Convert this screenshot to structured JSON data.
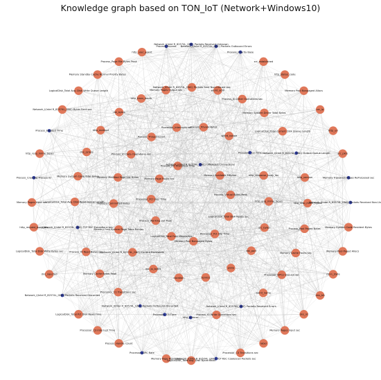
{
  "title": "Knowledge graph based on TON_IoT (Network+Windows10)",
  "colors": {
    "node_major": "#e0785a",
    "node_minor": "#2f3d9e",
    "edge": "#b9b9b9"
  },
  "nodes": [
    {
      "label": "Network_I(Intel R_82574L_GNC) Packets Received Unknown",
      "kind": "minor"
    },
    {
      "label": "Network_I(Intel R_82574L_GNC) Packets Outbound Errors",
      "kind": "minor"
    },
    {
      "label": "Process_Priority Base",
      "kind": "minor"
    },
    {
      "label": "src_established",
      "kind": "major"
    },
    {
      "label": "http_status_code",
      "kind": "major"
    },
    {
      "label": "Memory Pool Nonpaged Allocs",
      "kind": "major"
    },
    {
      "label": "src_ip",
      "kind": "major"
    },
    {
      "label": "http_uri",
      "kind": "major"
    },
    {
      "label": "src_pkts",
      "kind": "major"
    },
    {
      "label": "Memory Transition Pages RePurposed sec",
      "kind": "minor"
    },
    {
      "label": "Network_I(Intel R_82574L_GNC) Packets Received Non-Unicast sec",
      "kind": "minor"
    },
    {
      "label": "Memory System Code Resident Bytes",
      "kind": "major"
    },
    {
      "label": "Memory Pool Paged Allocs",
      "kind": "major"
    },
    {
      "label": "conn_state",
      "kind": "major"
    },
    {
      "label": "dns_AA",
      "kind": "major"
    },
    {
      "label": "dns_rd",
      "kind": "major"
    },
    {
      "label": "Memory Pages Input sec",
      "kind": "major"
    },
    {
      "label": "label",
      "kind": "major"
    },
    {
      "label": "Processor_C3 Transitions sec",
      "kind": "major"
    },
    {
      "label": "Network_I(Intel R_82574L_GNC) TCP RSC Coalesced Packets sec",
      "kind": "minor"
    },
    {
      "label": "LogicalDisk_Total Avg. Disk Bytes Read",
      "kind": "major"
    },
    {
      "label": "Memory Page Reads sec",
      "kind": "major"
    },
    {
      "label": "Processor_DPC Rate",
      "kind": "minor"
    },
    {
      "label": "Process_Handle Count",
      "kind": "major"
    },
    {
      "label": "Processor_C3 Interrupt Time",
      "kind": "major"
    },
    {
      "label": "LogicalDisk_Total Pct Disk Read Time",
      "kind": "major"
    },
    {
      "label": "Network_I(Intel R_82574L_GNC) Packets Received Discarded",
      "kind": "minor"
    },
    {
      "label": "dns_rejected",
      "kind": "major"
    },
    {
      "label": "LogicalDisk_Total Disk Write Bytes sec",
      "kind": "major"
    },
    {
      "label": "http_request_body_len",
      "kind": "major"
    },
    {
      "label": "Memory Pages Input sec",
      "kind": "major"
    },
    {
      "label": "Process_Creating Process ID",
      "kind": "minor"
    },
    {
      "label": "http_resp_mime_types",
      "kind": "major"
    },
    {
      "label": "Process_Elapsed Time",
      "kind": "minor"
    },
    {
      "label": "Network_I(Intel R_82574L_GNC) Bytes Sent sec",
      "kind": "major"
    },
    {
      "label": "LogicalDisk_Total Avg. Disk Write Queue Length",
      "kind": "major"
    },
    {
      "label": "Memory Standby Cache Normal Priority Bytes",
      "kind": "major"
    },
    {
      "label": "Process_Page File Bytes Peak",
      "kind": "major"
    },
    {
      "label": "http_user_agent",
      "kind": "major"
    },
    {
      "label": "Process_Process",
      "kind": "minor"
    },
    {
      "label": "weird_addl",
      "kind": "major"
    },
    {
      "label": "Process_IO Other Operations sec",
      "kind": "major"
    },
    {
      "label": "Memory System Driver Total Bytes",
      "kind": "major"
    },
    {
      "label": "LogicalDisk_Total Current Disk Queue Length",
      "kind": "major"
    },
    {
      "label": "Network_I(Intel R_82574L_GNC) Output Queue Length",
      "kind": "minor"
    },
    {
      "label": "http_version",
      "kind": "major"
    },
    {
      "label": "http_resp_mime_types",
      "kind": "major"
    },
    {
      "label": "Process_Pool Paged Bytes",
      "kind": "major"
    },
    {
      "label": "Memory Cache Faults sec",
      "kind": "major"
    },
    {
      "label": "Processor_DPCs Queued sec",
      "kind": "major"
    },
    {
      "label": "weird_name",
      "kind": "major"
    },
    {
      "label": "Network_I(Intel R_82574L_GNC) Packets Received Errors",
      "kind": "minor"
    },
    {
      "label": "Process_IO Write Operations sec",
      "kind": "major"
    },
    {
      "label": "http_referrer",
      "kind": "minor"
    },
    {
      "label": "Processor_C3 Time",
      "kind": "minor"
    },
    {
      "label": "Network_I(Intel R_82574L_GNC) Packets Outbound Discarded",
      "kind": "minor"
    },
    {
      "label": "Processor_C1 Transitions sec",
      "kind": "major"
    },
    {
      "label": "Memory Cache Bytes Peak",
      "kind": "major"
    },
    {
      "label": "Process_IO Read Bytes sec",
      "kind": "major"
    },
    {
      "label": "Network_I(Intel R_82574L_GNC) TCP RSC Exceptions sec",
      "kind": "minor"
    },
    {
      "label": "LogicalDisk_Total Avg. Disk Read Queue Length",
      "kind": "major"
    },
    {
      "label": "Memory System Code Total Bytes",
      "kind": "major"
    },
    {
      "label": "dns_qclass",
      "kind": "major"
    },
    {
      "label": "http_method",
      "kind": "major"
    },
    {
      "label": "dst_bytes",
      "kind": "major"
    },
    {
      "label": "http_trans_depth",
      "kind": "major"
    },
    {
      "label": "Memory Pages Output sec",
      "kind": "major"
    },
    {
      "label": "Network_I(Intel R_82574L_GNC) Packets Sent Non-Unicast sec",
      "kind": "major"
    },
    {
      "label": "weird_notice",
      "kind": "major"
    },
    {
      "label": "Processor_C2 Time",
      "kind": "minor"
    },
    {
      "label": "http_response_body_len",
      "kind": "major"
    },
    {
      "label": "http_orig_mime_types",
      "kind": "major"
    },
    {
      "label": "src_bytes",
      "kind": "major"
    },
    {
      "label": "dst_port",
      "kind": "major"
    },
    {
      "label": "proto",
      "kind": "major"
    },
    {
      "label": "service",
      "kind": "major"
    },
    {
      "label": "duration",
      "kind": "major"
    },
    {
      "label": "dst_ip_bytes",
      "kind": "major"
    },
    {
      "label": "Network_I(Intel R_82574L_GNC) Current Bandwidth",
      "kind": "major"
    },
    {
      "label": "Memory Free System Page Table Entries",
      "kind": "major"
    },
    {
      "label": "Memory Committed Bytes",
      "kind": "major"
    },
    {
      "label": "Memory Modified Page List Bytes",
      "kind": "major"
    },
    {
      "label": "Process_IO Data Operations sec",
      "kind": "major"
    },
    {
      "label": "Process_Thread Count",
      "kind": "major"
    },
    {
      "label": "Processor_Interrupts sec",
      "kind": "major"
    },
    {
      "label": "Process_Private Bytes",
      "kind": "major"
    },
    {
      "label": "Memory Available MBytes",
      "kind": "major"
    },
    {
      "label": "Process_Virtual Bytes Peak",
      "kind": "major"
    },
    {
      "label": "LogicalDisk_Total Disk Reads sec",
      "kind": "major"
    },
    {
      "label": "Processor_Pct Idle Time",
      "kind": "major"
    },
    {
      "label": "Memory Pool Nonpaged Bytes",
      "kind": "major"
    },
    {
      "label": "LogicalDisk_Total Free Megabytes",
      "kind": "major"
    },
    {
      "label": "Process_Working Set Peak",
      "kind": "major"
    },
    {
      "label": "Processor_Pct User Time",
      "kind": "major"
    },
    {
      "label": "Memory Page Faults sec",
      "kind": "major"
    },
    {
      "label": "Process_Pct Processor Time",
      "kind": "major"
    },
    {
      "label": "Network_I(Intel R_82574L_GNC) Offloaded Connections",
      "kind": "minor"
    }
  ]
}
